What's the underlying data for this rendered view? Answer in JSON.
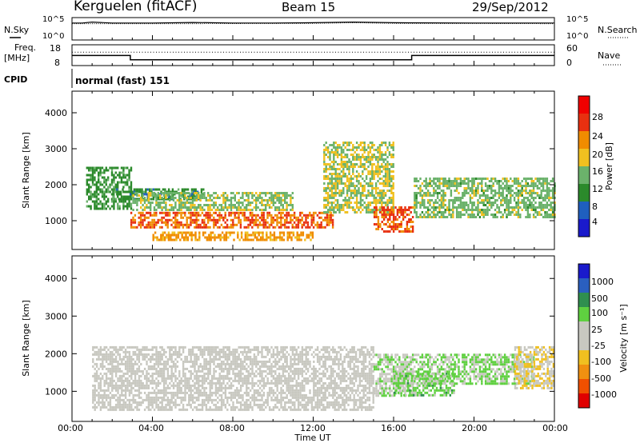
{
  "header": {
    "station": "Kerguelen (fitACF)",
    "beam": "Beam 15",
    "date": "29/Sep/2012"
  },
  "strip": {
    "nsky_label": "N.Sky",
    "nsky_ticks": [
      "10^5",
      "10^0"
    ],
    "nsearch_label": "N.Search",
    "nsearch_ticks": [
      "10^5",
      "10^0"
    ],
    "freq_label": "Freq.",
    "freq_unit": "[MHz]",
    "freq_ticks": [
      "18",
      "8"
    ],
    "nave_label": "Nave",
    "nave_ticks": [
      "60",
      "0"
    ],
    "cpid_label": "CPID",
    "cpid_value": "normal (fast) 151"
  },
  "panels": {
    "power": {
      "ylabel": "Slant Range [km]",
      "yticks": [
        "4000",
        "3000",
        "2000",
        "1000"
      ],
      "cbar_label": "Power [dB]",
      "cbar_ticks": [
        "28",
        "24",
        "20",
        "16",
        "12",
        "8",
        "4"
      ]
    },
    "velocity": {
      "ylabel": "Slant Range [km]",
      "yticks": [
        "4000",
        "3000",
        "2000",
        "1000"
      ],
      "cbar_label": "Velocity [m s⁻¹]",
      "cbar_ticks": [
        "1000",
        "500",
        "100",
        "25",
        "-25",
        "-100",
        "-500",
        "-1000"
      ]
    }
  },
  "xaxis": {
    "label": "Time UT",
    "ticks": [
      "00:00",
      "04:00",
      "08:00",
      "12:00",
      "16:00",
      "20:00",
      "00:00"
    ]
  },
  "chart_data": [
    {
      "type": "line",
      "panel": "noise",
      "y_scale": "log",
      "ylim": [
        1,
        100000
      ],
      "xlim_hours": [
        0,
        24
      ],
      "series": [
        {
          "name": "N.Sky",
          "style": "solid",
          "x": [
            0,
            0.5,
            1.0,
            2.0,
            4.0,
            6.0,
            8.0,
            10.0,
            12.0,
            14.0,
            16.0,
            20.0,
            24.0
          ],
          "y": [
            20000,
            20000,
            40000,
            20000,
            20000,
            30000,
            20000,
            20000,
            25000,
            40000,
            25000,
            20000,
            20000
          ]
        },
        {
          "name": "N.Search",
          "style": "dotted",
          "x": [
            0,
            6.0,
            12.0,
            14.0,
            16.0,
            24.0
          ],
          "y": [
            12000,
            12000,
            15000,
            25000,
            15000,
            12000
          ]
        }
      ]
    },
    {
      "type": "line",
      "panel": "frequency",
      "ylim": [
        8,
        18
      ],
      "xlim_hours": [
        0,
        24
      ],
      "series": [
        {
          "name": "Freq.",
          "style": "solid",
          "x": [
            0,
            2.9,
            2.9,
            16.9,
            16.9,
            24.0
          ],
          "y": [
            12.8,
            12.8,
            10.4,
            10.4,
            12.8,
            12.8
          ]
        },
        {
          "name": "Nave",
          "style": "dotted",
          "x": [
            0,
            24.0
          ],
          "y": [
            40,
            40
          ],
          "ylim": [
            0,
            60
          ]
        }
      ]
    },
    {
      "type": "heatmap",
      "panel": "power",
      "title": "",
      "xlabel": "Time UT",
      "ylabel": "Slant Range [km]",
      "x_unit": "hours UT",
      "xlim": [
        0,
        24
      ],
      "ylim": [
        200,
        4600
      ],
      "color_scale": {
        "label": "Power [dB]",
        "min": 0,
        "max": 32,
        "stops": [
          "#1a1acc",
          "#1f5fbf",
          "#2b8a2b",
          "#6bb26b",
          "#f0c020",
          "#f08c00",
          "#e83010",
          "#f00000"
        ]
      },
      "regions": [
        {
          "t": [
            0.7,
            2.9
          ],
          "r": [
            1300,
            2500
          ],
          "v": 10
        },
        {
          "t": [
            2.0,
            6.5
          ],
          "r": [
            1600,
            1900
          ],
          "v": 9
        },
        {
          "t": [
            3.0,
            11.0
          ],
          "r": [
            1300,
            1800
          ],
          "v": 15
        },
        {
          "t": [
            2.9,
            13.0
          ],
          "r": [
            800,
            1250
          ],
          "v": 25
        },
        {
          "t": [
            4.0,
            12.0
          ],
          "r": [
            450,
            700
          ],
          "v": 22
        },
        {
          "t": [
            12.5,
            16.0
          ],
          "r": [
            1200,
            3200
          ],
          "v": 16
        },
        {
          "t": [
            15.0,
            17.0
          ],
          "r": [
            700,
            1400
          ],
          "v": 26
        },
        {
          "t": [
            17.0,
            24.0
          ],
          "r": [
            1100,
            2200
          ],
          "v": 14
        }
      ]
    },
    {
      "type": "heatmap",
      "panel": "velocity",
      "title": "",
      "xlabel": "Time UT",
      "ylabel": "Slant Range [km]",
      "x_unit": "hours UT",
      "xlim": [
        0,
        24
      ],
      "ylim": [
        200,
        4600
      ],
      "color_scale": {
        "label": "Velocity [m s^-1]",
        "min": -1000,
        "max": 1000,
        "stops": [
          "#e00000",
          "#f05000",
          "#f09010",
          "#f0c020",
          "#c8c8c0",
          "#c8c8c0",
          "#5fd040",
          "#2f8f4f",
          "#2a5fbf",
          "#1a1acc"
        ]
      },
      "regions": [
        {
          "t": [
            1.0,
            15.0
          ],
          "r": [
            500,
            2200
          ],
          "v": 0
        },
        {
          "t": [
            15.0,
            17.0
          ],
          "r": [
            900,
            2000
          ],
          "v": 150
        },
        {
          "t": [
            16.0,
            19.0
          ],
          "r": [
            900,
            1500
          ],
          "v": 300
        },
        {
          "t": [
            17.0,
            23.0
          ],
          "r": [
            1200,
            2000
          ],
          "v": 250
        },
        {
          "t": [
            22.0,
            24.0
          ],
          "r": [
            1100,
            2200
          ],
          "v": -200
        }
      ]
    }
  ]
}
